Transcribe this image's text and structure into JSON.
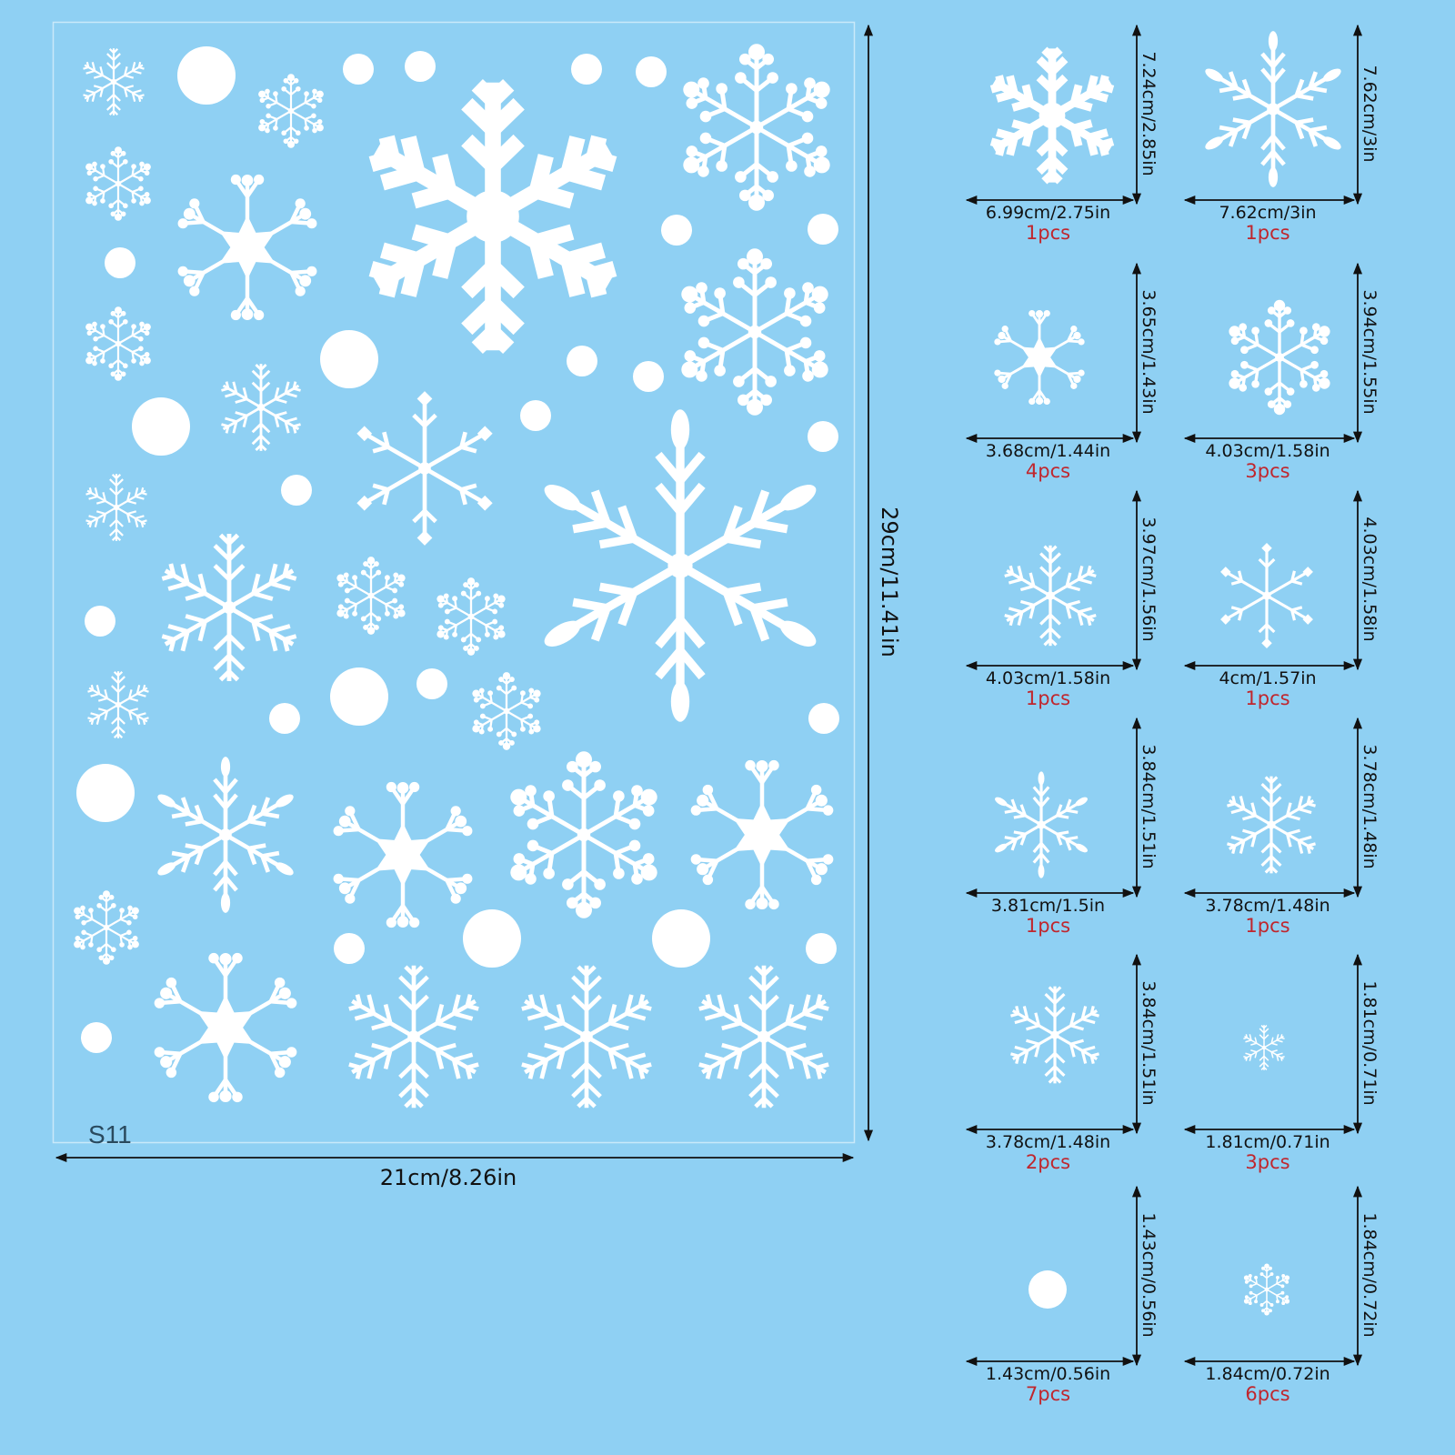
{
  "colors": {
    "background": "#8fd0f3",
    "sticker": "#ffffff",
    "dimension_text": "#111111",
    "quantity_text": "#c0262d"
  },
  "sheet": {
    "code": "S11",
    "width_label": "21cm/8.26in",
    "height_label": "29cm/11.41in"
  },
  "items": [
    {
      "icon": "snowflake-icon",
      "width": "6.99cm/2.75in",
      "height": "7.24cm/2.85in",
      "qty": "1pcs"
    },
    {
      "icon": "snowflake-icon",
      "width": "7.62cm/3in",
      "height": "7.62cm/3in",
      "qty": "1pcs"
    },
    {
      "icon": "snowflake-icon",
      "width": "3.68cm/1.44in",
      "height": "3.65cm/1.43in",
      "qty": "4pcs"
    },
    {
      "icon": "snowflake-icon",
      "width": "4.03cm/1.58in",
      "height": "3.94cm/1.55in",
      "qty": "3pcs"
    },
    {
      "icon": "snowflake-icon",
      "width": "4.03cm/1.58in",
      "height": "3.97cm/1.56in",
      "qty": "1pcs"
    },
    {
      "icon": "snowflake-icon",
      "width": "4cm/1.57in",
      "height": "4.03cm/1.58in",
      "qty": "1pcs"
    },
    {
      "icon": "snowflake-icon",
      "width": "3.81cm/1.5in",
      "height": "3.84cm/1.51in",
      "qty": "1pcs"
    },
    {
      "icon": "snowflake-icon",
      "width": "3.78cm/1.48in",
      "height": "3.78cm/1.48in",
      "qty": "1pcs"
    },
    {
      "icon": "snowflake-icon",
      "width": "3.78cm/1.48in",
      "height": "3.84cm/1.51in",
      "qty": "2pcs"
    },
    {
      "icon": "snowflake-icon",
      "width": "1.81cm/0.71in",
      "height": "1.81cm/0.71in",
      "qty": "3pcs"
    },
    {
      "icon": "dot-icon",
      "width": "1.43cm/0.56in",
      "height": "1.43cm/0.56in",
      "qty": "7pcs"
    },
    {
      "icon": "snowflake-icon",
      "width": "1.84cm/0.72in",
      "height": "1.84cm/0.72in",
      "qty": "6pcs"
    }
  ]
}
